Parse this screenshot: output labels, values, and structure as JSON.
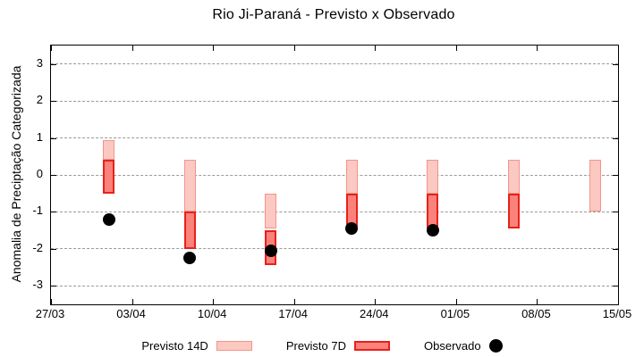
{
  "title": "Rio Ji-Paraná - Previsto x Observado",
  "legend": {
    "previsto_14d": "Previsto 14D",
    "previsto_7d": "Previsto 7D",
    "observado": "Observado"
  },
  "chart_data": {
    "type": "bar",
    "title": "Rio Ji-Paraná - Previsto x Observado",
    "xlabel": "",
    "ylabel": "Anomalia de Preciptação Categorizada",
    "ylim": [
      -3.5,
      3.5
    ],
    "yticks": [
      3,
      2,
      1,
      0,
      -1,
      -2,
      -3
    ],
    "xlim_dates": [
      "27/03",
      "15/05"
    ],
    "xticks": [
      "27/03",
      "03/04",
      "10/04",
      "17/04",
      "24/04",
      "01/05",
      "08/05",
      "15/05"
    ],
    "grid": "horizontal-dashed",
    "legend_position": "bottom",
    "series": [
      {
        "name": "Previsto 14D",
        "type": "range-bar",
        "fill": "#fbc8c2",
        "border": "#f2958b"
      },
      {
        "name": "Previsto 7D",
        "type": "range-bar",
        "fill": "#fa827a",
        "border": "#e8211a"
      },
      {
        "name": "Observado",
        "type": "point",
        "fill": "#000000"
      }
    ],
    "clusters": [
      {
        "date": "01/04",
        "previsto_14d": [
          0.4,
          0.95
        ],
        "previsto_7d": [
          -0.5,
          0.4
        ],
        "observado": -1.2
      },
      {
        "date": "08/04",
        "previsto_14d": [
          -1.0,
          0.4
        ],
        "previsto_7d": [
          -2.0,
          -1.0
        ],
        "observado": -2.25
      },
      {
        "date": "15/04",
        "previsto_14d": [
          -1.45,
          -0.5
        ],
        "previsto_7d": [
          -2.45,
          -1.5
        ],
        "observado": -2.05
      },
      {
        "date": "22/04",
        "previsto_14d": [
          -0.5,
          0.4
        ],
        "previsto_7d": [
          -1.4,
          -0.5
        ],
        "observado": -1.45
      },
      {
        "date": "29/04",
        "previsto_14d": [
          -0.5,
          0.4
        ],
        "previsto_7d": [
          -1.45,
          -0.5
        ],
        "observado": -1.5
      },
      {
        "date": "06/05",
        "previsto_14d": [
          -0.5,
          0.4
        ],
        "previsto_7d": [
          -1.45,
          -0.5
        ],
        "observado": null
      },
      {
        "date": "13/05",
        "previsto_14d": [
          -1.0,
          0.4
        ],
        "previsto_7d": null,
        "observado": null
      }
    ]
  }
}
